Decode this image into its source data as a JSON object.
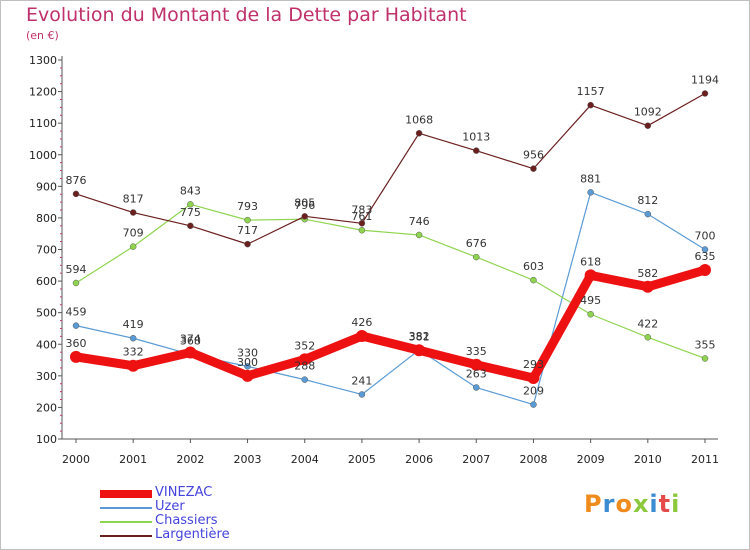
{
  "title": "Evolution du Montant de la Dette par Habitant",
  "subtitle": "(en €)",
  "brand": {
    "letters": [
      "P",
      "r",
      "o",
      "x",
      "i",
      "t",
      "i"
    ],
    "colors": [
      "#f08c1e",
      "#3c8cd2",
      "#f08c1e",
      "#8cc83c",
      "#3c8cd2",
      "#e64b4b",
      "#8cc83c"
    ]
  },
  "chart_data": {
    "type": "line",
    "title": "Evolution du Montant de la Dette par Habitant",
    "subtitle": "(en €)",
    "xlabel": "",
    "ylabel": "",
    "x": [
      "2000",
      "2001",
      "2002",
      "2003",
      "2004",
      "2005",
      "2006",
      "2007",
      "2008",
      "2009",
      "2010",
      "2011"
    ],
    "ylim": [
      100,
      1300
    ],
    "yticks": [
      100,
      200,
      300,
      400,
      500,
      600,
      700,
      800,
      900,
      1000,
      1100,
      1200,
      1300
    ],
    "grid": false,
    "legend_position": "bottom-left",
    "series": [
      {
        "name": "VINEZAC",
        "color": "#ee1111",
        "values": [
          360,
          332,
          374,
          300,
          352,
          426,
          381,
          335,
          293,
          618,
          582,
          635
        ]
      },
      {
        "name": "Uzer",
        "color": "#5b9bd5",
        "values": [
          459,
          419,
          368,
          330,
          288,
          241,
          382,
          263,
          209,
          881,
          812,
          700
        ]
      },
      {
        "name": "Chassiers",
        "color": "#8fd44f",
        "values": [
          594,
          709,
          843,
          793,
          796,
          761,
          746,
          676,
          603,
          495,
          422,
          355
        ]
      },
      {
        "name": "Largentière",
        "color": "#6b1f1f",
        "values": [
          876,
          817,
          775,
          717,
          805,
          783,
          1068,
          1013,
          956,
          1157,
          1092,
          1194
        ]
      }
    ]
  }
}
